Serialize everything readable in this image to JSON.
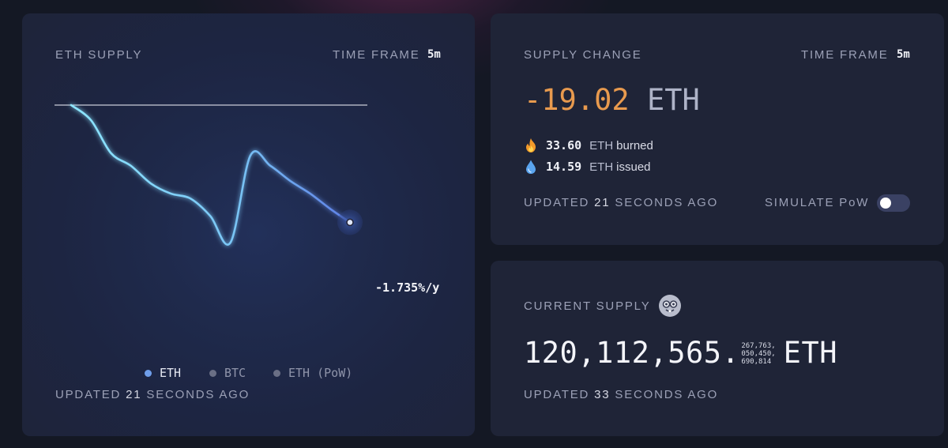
{
  "supply_card": {
    "title": "ETH SUPPLY",
    "time_frame_label": "TIME FRAME",
    "time_frame_value": "5m",
    "chart_end_label": "-1.735%/y",
    "legend": [
      {
        "label": "ETH",
        "color": "#6f9eea"
      },
      {
        "label": "BTC",
        "color": "#6a6f85"
      },
      {
        "label": "ETH (PoW)",
        "color": "#6a6f85"
      }
    ],
    "updated_prefix": "UPDATED",
    "updated_value": "21",
    "updated_suffix": "SECONDS AGO"
  },
  "chart_data": {
    "type": "line",
    "title": "",
    "xlabel": "",
    "ylabel": "",
    "series": [
      {
        "name": "ETH",
        "color": "#7fd8ff",
        "values": [
          0.0,
          -0.3,
          -0.95,
          -1.2,
          -1.55,
          -1.75,
          -1.85,
          -2.2,
          -2.72,
          -1.0,
          -1.2,
          -1.5,
          -1.75,
          -2.05,
          -2.32
        ]
      }
    ],
    "reference_line": 0.0,
    "end_label": "-1.735%/y",
    "grid": false,
    "legend_position": "bottom-center"
  },
  "change_card": {
    "title": "SUPPLY CHANGE",
    "time_frame_label": "TIME FRAME",
    "time_frame_value": "5m",
    "change_value": "-19.02",
    "change_unit": "ETH",
    "change_color": "#e89a4e",
    "burned_icon": "fire-icon",
    "burned_value": "33.60",
    "burned_unit": "ETH",
    "burned_label": "burned",
    "issued_icon": "droplet-icon",
    "issued_value": "14.59",
    "issued_unit": "ETH",
    "issued_label": "issued",
    "updated_prefix": "UPDATED",
    "updated_value": "21",
    "updated_suffix": "SECONDS AGO",
    "simulate_label": "SIMULATE PoW",
    "simulate_on": false
  },
  "current_card": {
    "title": "CURRENT SUPPLY",
    "title_icon": "nerd-face-icon",
    "supply_main": "120,112,565.",
    "supply_decimals_1": "267,763,",
    "supply_decimals_2": "050,450,",
    "supply_decimals_3": "690,814",
    "supply_unit": "ETH",
    "updated_prefix": "UPDATED",
    "updated_value": "33",
    "updated_suffix": "SECONDS AGO"
  }
}
